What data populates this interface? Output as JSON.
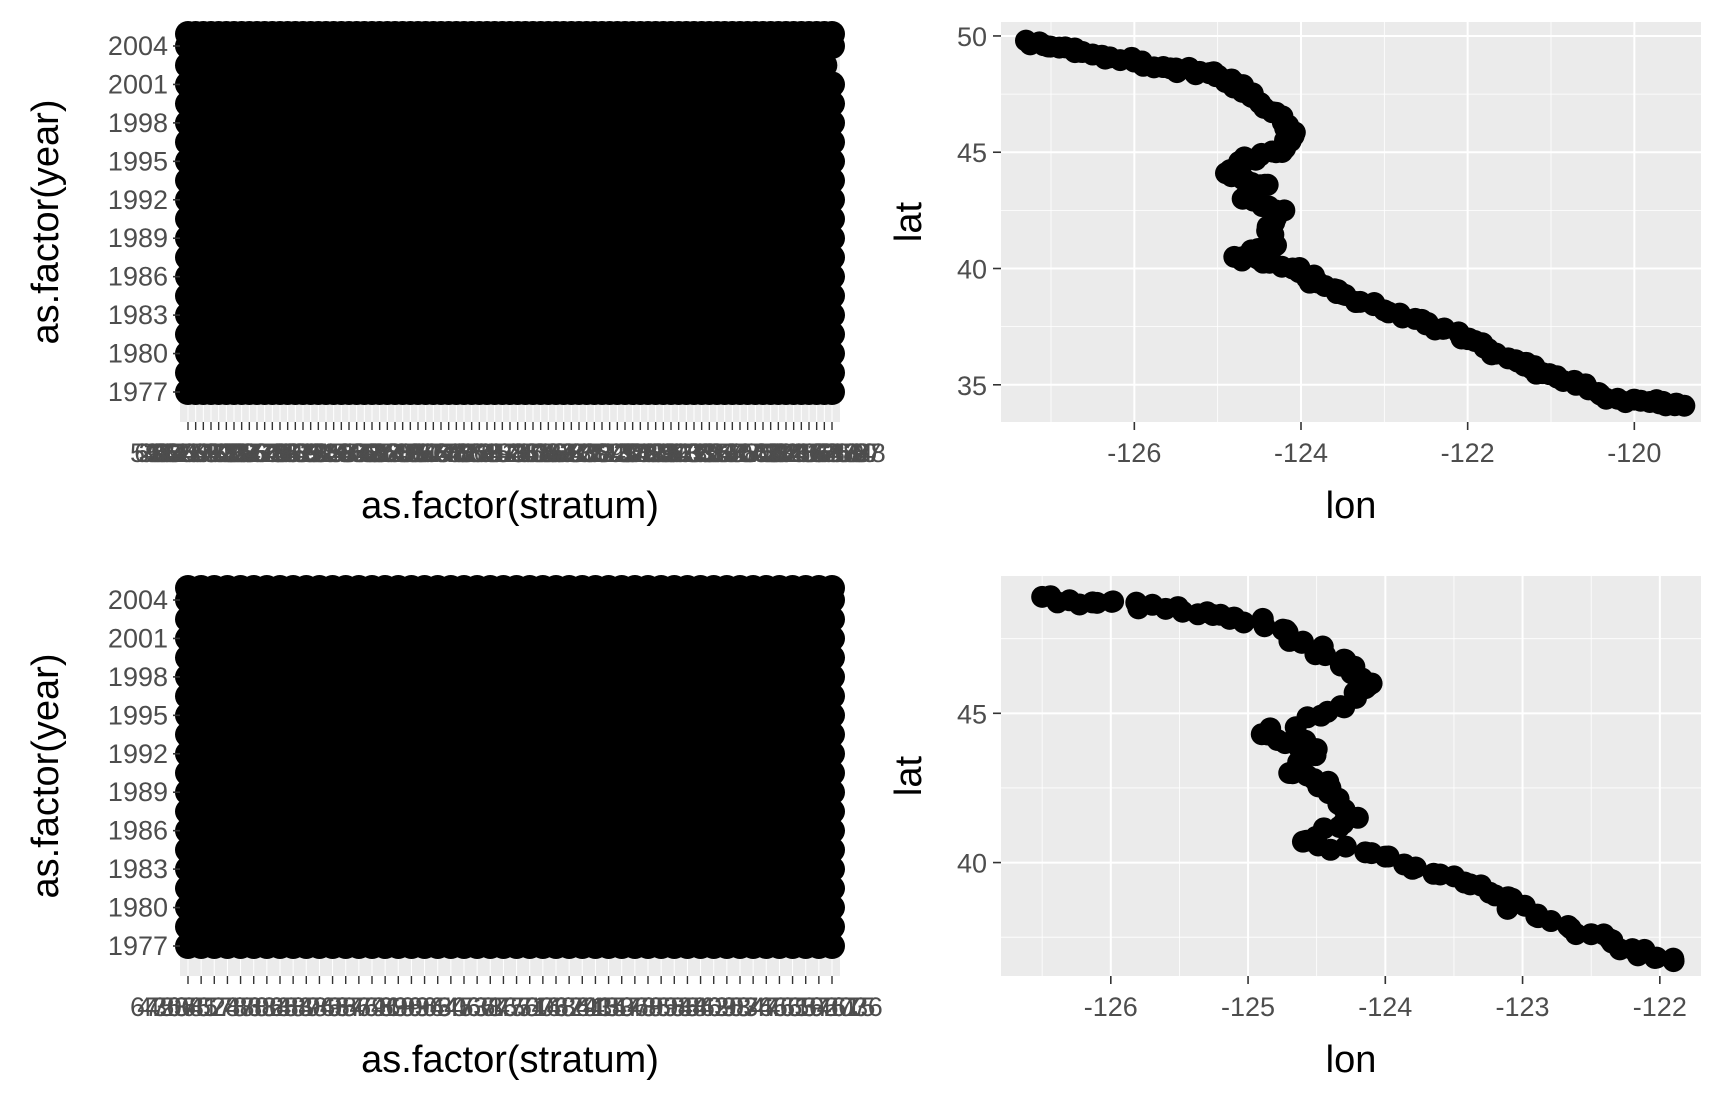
{
  "colors": {
    "panel_bg": "#ebebeb",
    "grid": "#ffffff",
    "point": "#000000",
    "tick_text": "#4d4d4d",
    "title_text": "#000000"
  },
  "chart_data": [
    {
      "type": "scatter",
      "xlabel": "as.factor(stratum)",
      "ylabel": "as.factor(year)",
      "y_ticks": [
        "1977",
        "1980",
        "1983",
        "1986",
        "1989",
        "1992",
        "1995",
        "1998",
        "2001",
        "2004"
      ],
      "x_tick_count": 85,
      "x_tick_labels": "overlapping, illegible",
      "grid": true,
      "note": "Points form a dense black mass covering most stratum/year combinations; gaps at low-stratum 1980-1988 area."
    },
    {
      "type": "scatter",
      "xlabel": "lon",
      "ylabel": "lat",
      "x_ticks": [
        -126,
        -124,
        -122,
        -120
      ],
      "y_ticks": [
        35,
        40,
        45,
        50
      ],
      "xlim": [
        -127.6,
        -119.2
      ],
      "ylim": [
        33.4,
        50.6
      ],
      "grid": true,
      "points": [
        [
          -127.3,
          49.8
        ],
        [
          -126.9,
          49.5
        ],
        [
          -126.5,
          49.2
        ],
        [
          -126.0,
          48.9
        ],
        [
          -125.5,
          48.6
        ],
        [
          -125.1,
          48.4
        ],
        [
          -124.8,
          48.0
        ],
        [
          -124.6,
          47.4
        ],
        [
          -124.3,
          46.7
        ],
        [
          -124.1,
          45.8
        ],
        [
          -124.3,
          45.0
        ],
        [
          -124.7,
          44.6
        ],
        [
          -124.9,
          44.1
        ],
        [
          -124.4,
          43.6
        ],
        [
          -124.7,
          43.0
        ],
        [
          -124.2,
          42.5
        ],
        [
          -124.4,
          41.8
        ],
        [
          -124.3,
          41.0
        ],
        [
          -124.8,
          40.5
        ],
        [
          -124.1,
          40.0
        ],
        [
          -123.8,
          39.4
        ],
        [
          -123.5,
          38.9
        ],
        [
          -123.0,
          38.2
        ],
        [
          -122.5,
          37.6
        ],
        [
          -122.1,
          37.2
        ],
        [
          -121.8,
          36.6
        ],
        [
          -121.4,
          36.0
        ],
        [
          -121.1,
          35.5
        ],
        [
          -120.7,
          35.0
        ],
        [
          -120.2,
          34.4
        ],
        [
          -119.7,
          34.2
        ],
        [
          -119.4,
          34.1
        ]
      ]
    },
    {
      "type": "scatter",
      "xlabel": "as.factor(stratum)",
      "ylabel": "as.factor(year)",
      "y_ticks": [
        "1977",
        "1980",
        "1983",
        "1986",
        "1989",
        "1992",
        "1995",
        "1998",
        "2001",
        "2004"
      ],
      "x_tick_count": 50,
      "x_tick_labels": "overlapping, illegible",
      "grid": true,
      "note": "Points fill the entire panel as a solid black mass."
    },
    {
      "type": "scatter",
      "xlabel": "lon",
      "ylabel": "lat",
      "x_ticks": [
        -126,
        -125,
        -124,
        -123,
        -122
      ],
      "y_ticks": [
        40,
        45
      ],
      "xlim": [
        -126.8,
        -121.7
      ],
      "ylim": [
        36.2,
        49.6
      ],
      "grid": true,
      "points": [
        [
          -126.5,
          48.9
        ],
        [
          -126.1,
          48.7
        ],
        [
          -125.6,
          48.5
        ],
        [
          -125.2,
          48.3
        ],
        [
          -124.9,
          48.1
        ],
        [
          -124.6,
          47.4
        ],
        [
          -124.3,
          46.8
        ],
        [
          -124.1,
          46.0
        ],
        [
          -124.3,
          45.2
        ],
        [
          -124.9,
          44.3
        ],
        [
          -124.5,
          43.8
        ],
        [
          -124.7,
          43.0
        ],
        [
          -124.4,
          42.5
        ],
        [
          -124.2,
          41.5
        ],
        [
          -124.6,
          40.7
        ],
        [
          -124.0,
          40.2
        ],
        [
          -123.6,
          39.6
        ],
        [
          -123.2,
          38.9
        ],
        [
          -122.9,
          38.2
        ],
        [
          -122.5,
          37.6
        ],
        [
          -122.2,
          37.1
        ],
        [
          -121.9,
          36.7
        ]
      ]
    }
  ]
}
